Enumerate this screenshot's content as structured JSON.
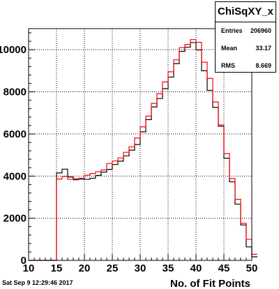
{
  "chart_data": {
    "type": "histogram",
    "xlabel": "No. of Fit Points",
    "ylabel": "",
    "xlim": [
      10,
      50
    ],
    "ylim": [
      0,
      11000
    ],
    "x_ticks": [
      "10",
      "15",
      "20",
      "25",
      "30",
      "35",
      "40",
      "45",
      "50"
    ],
    "y_ticks": [
      "0",
      "2000",
      "4000",
      "6000",
      "8000",
      "10000"
    ],
    "bin_edges": [
      10,
      11,
      12,
      13,
      14,
      15,
      16,
      17,
      18,
      19,
      20,
      21,
      22,
      23,
      24,
      25,
      26,
      27,
      28,
      29,
      30,
      31,
      32,
      33,
      34,
      35,
      36,
      37,
      38,
      39,
      40,
      41,
      42,
      43,
      44,
      45,
      46,
      47,
      48,
      49,
      50,
      51
    ],
    "series": [
      {
        "color": "#000000",
        "values": [
          0,
          0,
          0,
          0,
          0,
          4150,
          4330,
          3960,
          3860,
          3860,
          3850,
          3900,
          4030,
          4190,
          4320,
          4550,
          4710,
          4960,
          5230,
          5500,
          6100,
          6680,
          7280,
          7680,
          8150,
          8700,
          9340,
          9920,
          10120,
          10340,
          9990,
          9000,
          8070,
          7260,
          6370,
          4850,
          3730,
          2670,
          1680,
          640,
          170
        ]
      },
      {
        "color": "#ff0000",
        "values": [
          0,
          0,
          0,
          0,
          0,
          3860,
          3980,
          3850,
          3820,
          3900,
          4040,
          4120,
          4210,
          4290,
          4600,
          4720,
          4860,
          5130,
          5390,
          5810,
          6340,
          6850,
          7450,
          7910,
          8470,
          8950,
          9520,
          10100,
          10250,
          10480,
          10350,
          9410,
          8640,
          7520,
          6430,
          5070,
          3880,
          2900,
          1760,
          1000,
          290
        ]
      }
    ]
  },
  "stats_box": {
    "title": "ChiSqXY_x",
    "rows": [
      {
        "label": "Entries",
        "value": "206960"
      },
      {
        "label": "Mean",
        "value": "33.17"
      },
      {
        "label": "RMS",
        "value": "8.669"
      }
    ]
  },
  "datestamp": "Sat Sep  9 12:29:46 2017"
}
